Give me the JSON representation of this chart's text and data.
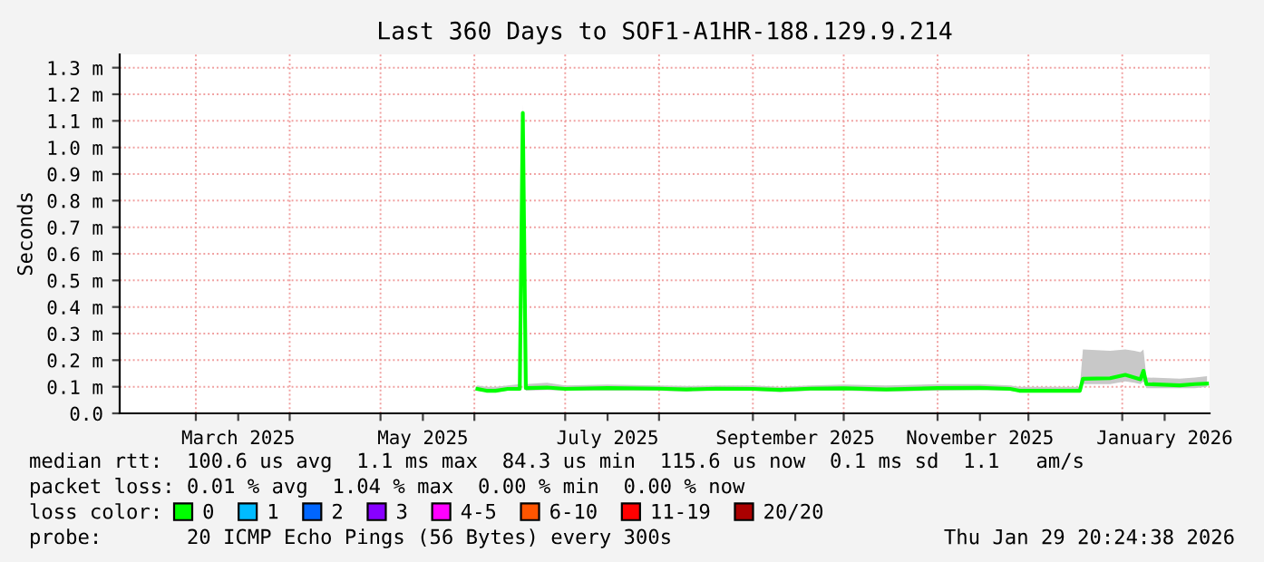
{
  "chart_data": {
    "type": "line",
    "title": "Last 360 Days to SOF1-A1HR-188.129.9.214",
    "ylabel": "Seconds",
    "xlim": [
      "2025-02-03T20:24",
      "2026-01-29T20:24"
    ],
    "xticks": [
      {
        "value": "2025-03-01",
        "label": null
      },
      {
        "value": "2025-03-15",
        "label": "March 2025"
      },
      {
        "value": "2025-04-01",
        "label": null
      },
      {
        "value": "2025-05-01",
        "label": null
      },
      {
        "value": "2025-05-15",
        "label": "May 2025"
      },
      {
        "value": "2025-06-01",
        "label": null
      },
      {
        "value": "2025-07-01",
        "label": null
      },
      {
        "value": "2025-07-15",
        "label": "July 2025"
      },
      {
        "value": "2025-08-01",
        "label": null
      },
      {
        "value": "2025-09-01",
        "label": null
      },
      {
        "value": "2025-09-15",
        "label": "September 2025"
      },
      {
        "value": "2025-10-01",
        "label": null
      },
      {
        "value": "2025-11-01",
        "label": null
      },
      {
        "value": "2025-11-15",
        "label": "November 2025"
      },
      {
        "value": "2025-12-01",
        "label": null
      },
      {
        "value": "2026-01-01",
        "label": null
      },
      {
        "value": "2026-01-15",
        "label": "January 2026"
      }
    ],
    "ylim": [
      0,
      1.35
    ],
    "yticks": [
      {
        "value": 0,
        "label": "0.0"
      },
      {
        "value": 0.1,
        "label": "0.1 m"
      },
      {
        "value": 0.2,
        "label": "0.2 m"
      },
      {
        "value": 0.3,
        "label": "0.3 m"
      },
      {
        "value": 0.4,
        "label": "0.4 m"
      },
      {
        "value": 0.5,
        "label": "0.5 m"
      },
      {
        "value": 0.6,
        "label": "0.6 m"
      },
      {
        "value": 0.7,
        "label": "0.7 m"
      },
      {
        "value": 0.8,
        "label": "0.8 m"
      },
      {
        "value": 0.9,
        "label": "0.9 m"
      },
      {
        "value": 1.0,
        "label": "1.0 m"
      },
      {
        "value": 1.1,
        "label": "1.1 m"
      },
      {
        "value": 1.2,
        "label": "1.2 m"
      },
      {
        "value": 1.3,
        "label": "1.3 m"
      }
    ],
    "grid": true,
    "legend": "bottom",
    "legend_title": "loss color:",
    "series": [
      {
        "name": "0",
        "color": "#00ff00",
        "x": [
          "2025-06-02",
          "2025-06-05",
          "2025-06-08",
          "2025-06-12",
          "2025-06-16",
          "2025-06-17",
          "2025-06-18",
          "2025-06-25",
          "2025-07-01",
          "2025-07-15",
          "2025-08-01",
          "2025-08-10",
          "2025-08-20",
          "2025-09-01",
          "2025-09-10",
          "2025-09-20",
          "2025-10-01",
          "2025-10-15",
          "2025-11-01",
          "2025-11-15",
          "2025-11-25",
          "2025-11-28",
          "2025-12-10",
          "2025-12-18",
          "2025-12-19",
          "2025-12-28",
          "2026-01-02",
          "2026-01-05",
          "2026-01-07",
          "2026-01-08",
          "2026-01-09",
          "2026-01-20",
          "2026-01-25",
          "2026-01-29"
        ],
        "values": [
          0.092,
          0.085,
          0.085,
          0.092,
          0.092,
          1.13,
          0.095,
          0.097,
          0.092,
          0.095,
          0.093,
          0.09,
          0.093,
          0.092,
          0.088,
          0.093,
          0.094,
          0.09,
          0.095,
          0.096,
          0.092,
          0.085,
          0.085,
          0.085,
          0.13,
          0.132,
          0.145,
          0.135,
          0.128,
          0.16,
          0.11,
          0.105,
          0.11,
          0.112
        ],
        "lower": [
          0.085,
          0.08,
          0.08,
          0.085,
          0.085,
          1.1,
          0.085,
          0.088,
          0.085,
          0.085,
          0.085,
          0.082,
          0.085,
          0.085,
          0.08,
          0.085,
          0.085,
          0.082,
          0.085,
          0.088,
          0.085,
          0.08,
          0.08,
          0.08,
          0.11,
          0.11,
          0.12,
          0.115,
          0.11,
          0.12,
          0.095,
          0.095,
          0.095,
          0.1
        ],
        "upper": [
          0.105,
          0.1,
          0.1,
          0.105,
          0.11,
          1.16,
          0.11,
          0.115,
          0.105,
          0.108,
          0.105,
          0.103,
          0.105,
          0.105,
          0.1,
          0.105,
          0.108,
          0.105,
          0.11,
          0.11,
          0.105,
          0.1,
          0.1,
          0.1,
          0.24,
          0.235,
          0.24,
          0.235,
          0.23,
          0.24,
          0.135,
          0.13,
          0.135,
          0.14
        ]
      },
      {
        "name": "1",
        "color": "#00bbff"
      },
      {
        "name": "2",
        "color": "#0066ff"
      },
      {
        "name": "3",
        "color": "#8800ff"
      },
      {
        "name": "4-5",
        "color": "#ff00ff"
      },
      {
        "name": "6-10",
        "color": "#ff5500"
      },
      {
        "name": "11-19",
        "color": "#ff0000"
      },
      {
        "name": "20/20",
        "color": "#aa0000"
      }
    ],
    "annotations": [
      "median rtt:  100.6 us avg  1.1 ms max  84.3 us min  115.6 us now  0.1 ms sd  1.1   am/s",
      "packet loss: 0.01 % avg  1.04 % max  0.00 % min  0.00 % now",
      "probe:       20 ICMP Echo Pings (56 Bytes) every 300s",
      "Thu Jan 29 20:24:38 2026"
    ]
  }
}
